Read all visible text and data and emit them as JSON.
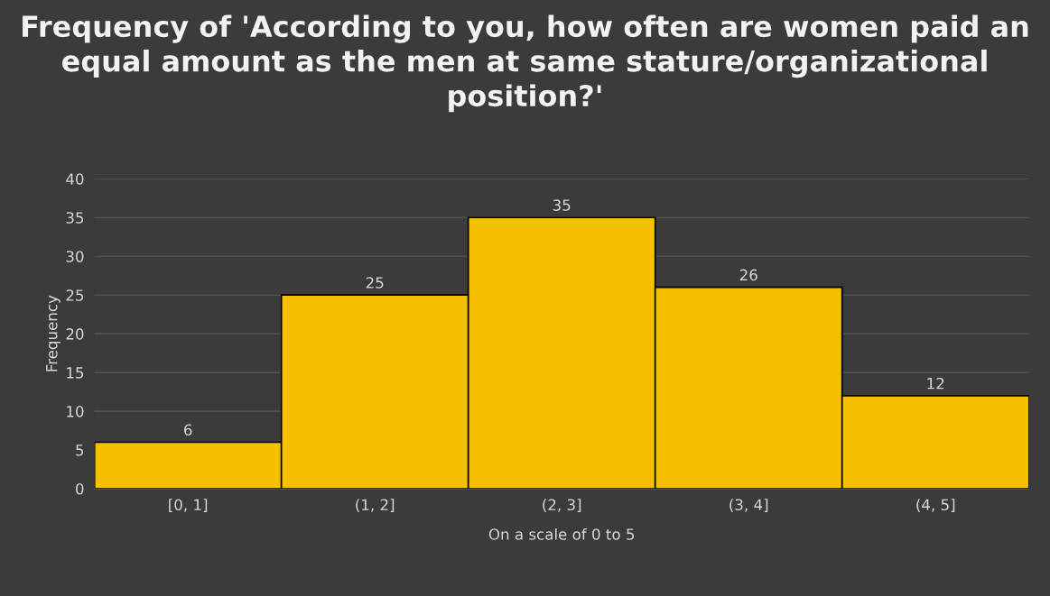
{
  "chart_data": {
    "type": "bar",
    "title": "Frequency of 'According to you, how often are women paid an equal amount as the men at same stature/organizational position?'",
    "xlabel": "On a scale of 0 to 5",
    "ylabel": "Frequency",
    "categories": [
      "[0, 1]",
      "(1, 2]",
      "(2, 3]",
      "(3, 4]",
      "(4, 5]"
    ],
    "values": [
      6,
      25,
      35,
      26,
      12
    ],
    "color": "#f5c000",
    "ylim": [
      0,
      40
    ],
    "yticks": [
      0,
      5,
      10,
      15,
      20,
      25,
      30,
      35,
      40
    ],
    "grid": "y",
    "data_labels": true
  }
}
